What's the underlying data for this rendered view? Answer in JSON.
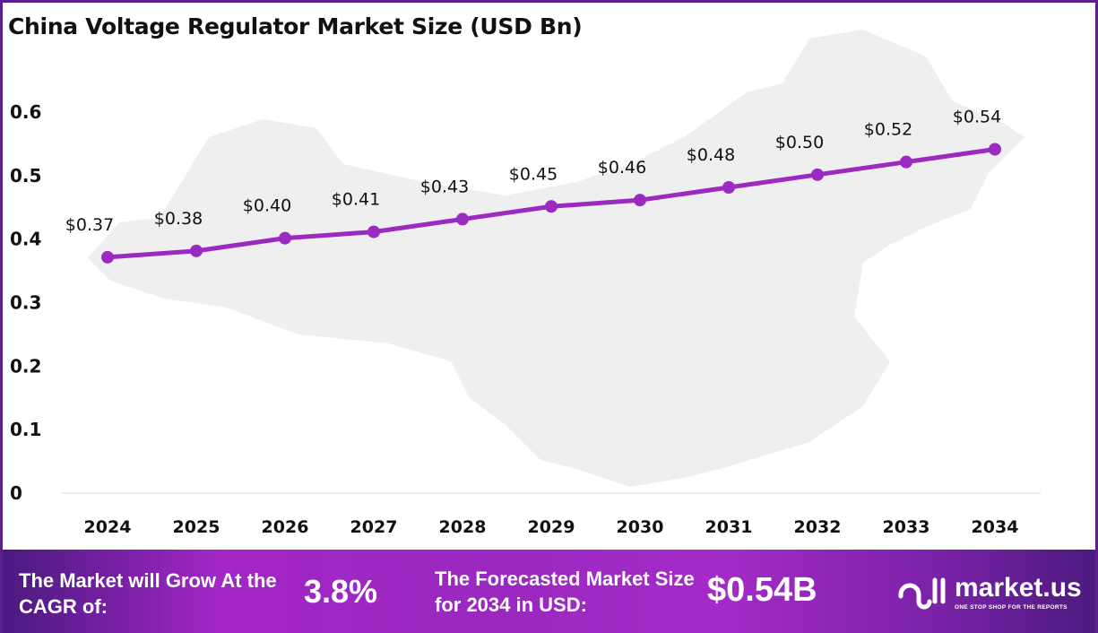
{
  "chart_data": {
    "type": "line",
    "title": "China Voltage Regulator Market Size (USD Bn)",
    "categories": [
      "2024",
      "2025",
      "2026",
      "2027",
      "2028",
      "2029",
      "2030",
      "2031",
      "2032",
      "2033",
      "2034"
    ],
    "values": [
      0.37,
      0.38,
      0.4,
      0.41,
      0.43,
      0.45,
      0.46,
      0.48,
      0.5,
      0.52,
      0.54
    ],
    "data_labels": [
      "$0.37",
      "$0.38",
      "$0.40",
      "$0.41",
      "$0.43",
      "$0.45",
      "$0.46",
      "$0.48",
      "$0.50",
      "$0.52",
      "$0.54"
    ],
    "yticks": [
      "0",
      "0.1",
      "0.2",
      "0.3",
      "0.4",
      "0.5",
      "0.6"
    ],
    "ylim": [
      0,
      0.6
    ],
    "xlabel": "",
    "ylabel": "",
    "grid": false,
    "legend": "none",
    "line_color": "#9b2bc0"
  },
  "footer": {
    "cagr_label": "The Market will Grow At the CAGR of:",
    "cagr_value": "3.8%",
    "forecast_label": "The Forecasted Market Size for 2034 in USD:",
    "forecast_value": "$0.54B",
    "logo_name": "market.us",
    "logo_tagline": "ONE STOP SHOP FOR THE REPORTS"
  }
}
